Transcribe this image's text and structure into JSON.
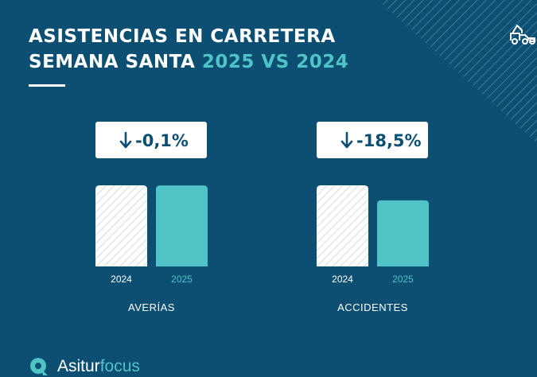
{
  "header": {
    "title_line1": "ASISTENCIAS EN CARRETERA",
    "title_line2_prefix": "SEMANA SANTA ",
    "title_line2_accent": "2025 VS 2024"
  },
  "colors": {
    "background": "#0d4f73",
    "accent_teal": "#4fc3c5",
    "bar_2024": "#ffffff",
    "badge_bg": "#ffffff"
  },
  "icons": [
    "tow-truck-icon",
    "down-arrow-icon",
    "asitur-logo-icon"
  ],
  "chart_data": [
    {
      "type": "bar",
      "group_label": "AVERÍAS",
      "change_label": "-0,1%",
      "change_direction": "down",
      "categories": [
        "2024",
        "2025"
      ],
      "values": [
        100,
        99.9
      ],
      "bar_styles": [
        "hatched-white",
        "solid-teal"
      ],
      "values_note": "relative (2024 = 100)",
      "ylim": [
        0,
        100
      ]
    },
    {
      "type": "bar",
      "group_label": "ACCIDENTES",
      "change_label": "-18,5%",
      "change_direction": "down",
      "categories": [
        "2024",
        "2025"
      ],
      "values": [
        100,
        81.5
      ],
      "bar_styles": [
        "hatched-white",
        "solid-teal"
      ],
      "values_note": "relative (2024 = 100)",
      "ylim": [
        0,
        100
      ]
    }
  ],
  "footer": {
    "brand_name_prefix": "Asitur",
    "brand_name_accent": "focus"
  }
}
